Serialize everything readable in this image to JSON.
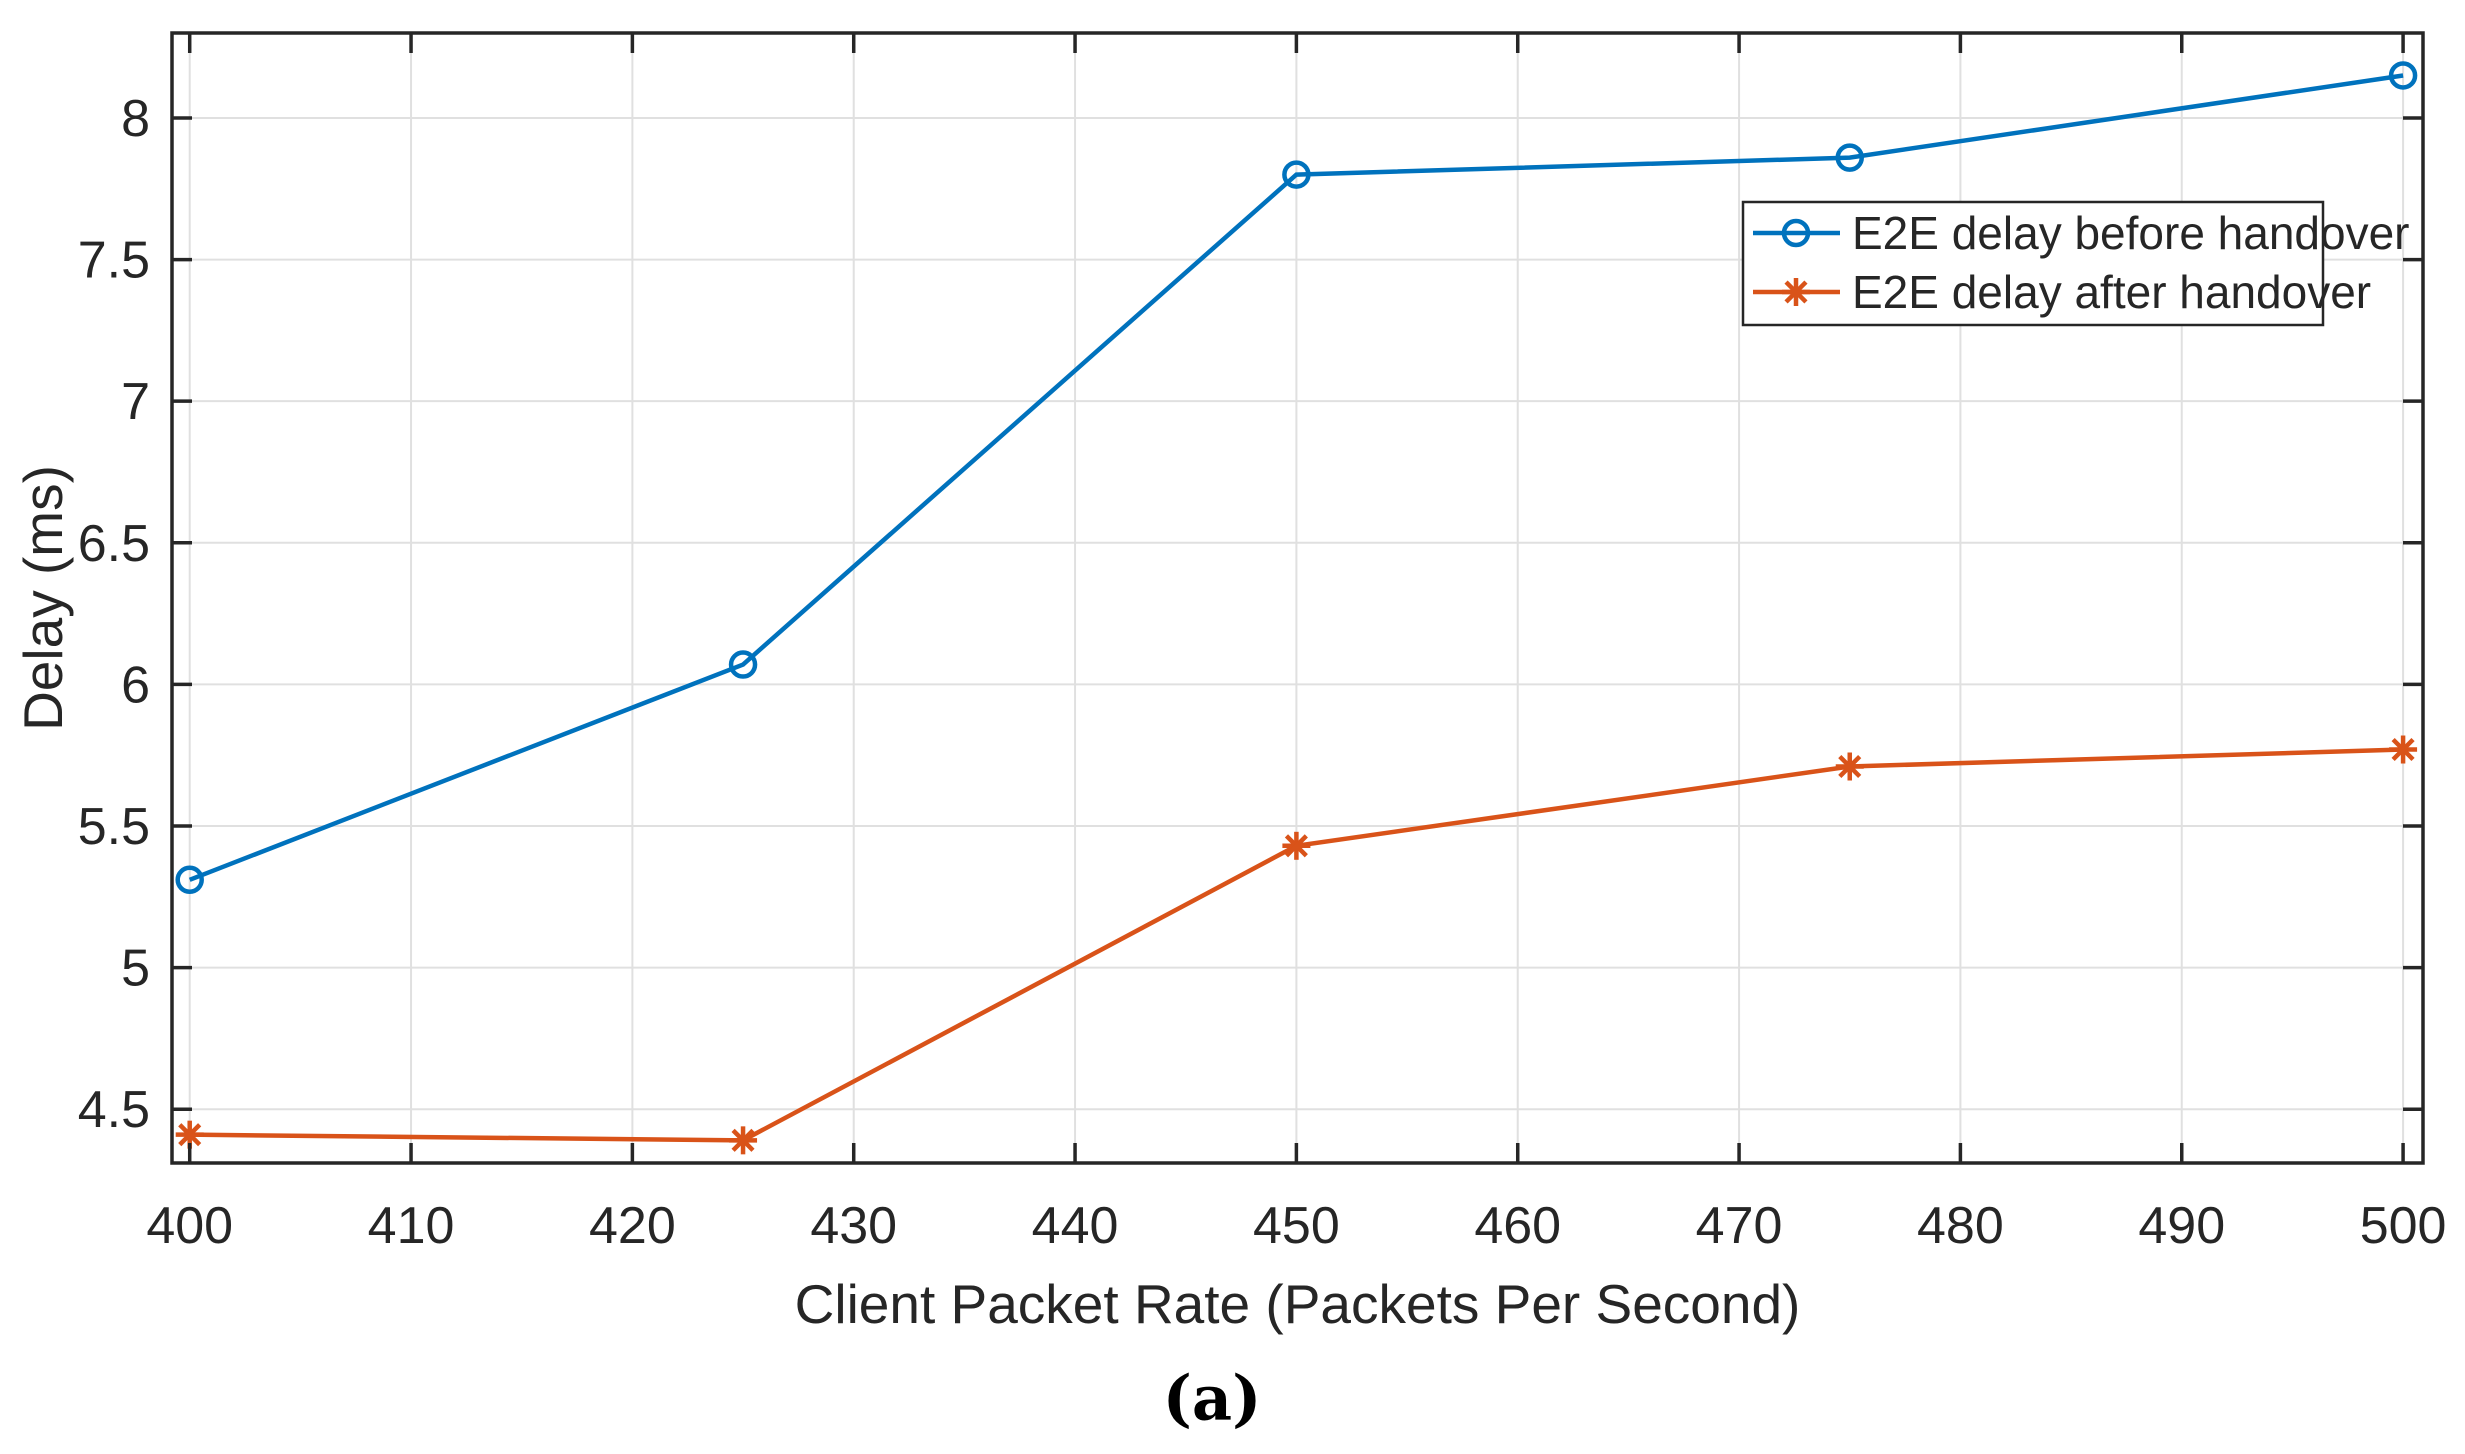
{
  "figure": {
    "caption": "(a)",
    "background": "#ffffff"
  },
  "chart_data": {
    "type": "line",
    "title": "",
    "xlabel": "Client Packet Rate (Packets Per Second)",
    "ylabel": "Delay (ms)",
    "x": [
      400,
      425,
      450,
      475,
      500
    ],
    "series": [
      {
        "name": "E2E delay before handover",
        "color": "#0072BD",
        "marker": "circle",
        "values": [
          5.31,
          6.07,
          7.8,
          7.86,
          8.15
        ]
      },
      {
        "name": "E2E delay after handover",
        "color": "#D95319",
        "marker": "asterisk",
        "values": [
          4.41,
          4.39,
          5.43,
          5.71,
          5.77
        ]
      }
    ],
    "xticks": [
      400,
      410,
      420,
      430,
      440,
      450,
      460,
      470,
      480,
      490,
      500
    ],
    "yticks": [
      4.5,
      5,
      5.5,
      6,
      6.5,
      7,
      7.5,
      8
    ],
    "xlim": [
      399.2,
      500.9
    ],
    "ylim": [
      4.31,
      8.3
    ],
    "grid": true,
    "legend_position": "upper-right-inside",
    "axis_color": "#262626",
    "grid_color": "#e0e0e0",
    "legend_border_color": "#262626",
    "legend_background": "#ffffff",
    "tick_label_color": "#262626"
  }
}
